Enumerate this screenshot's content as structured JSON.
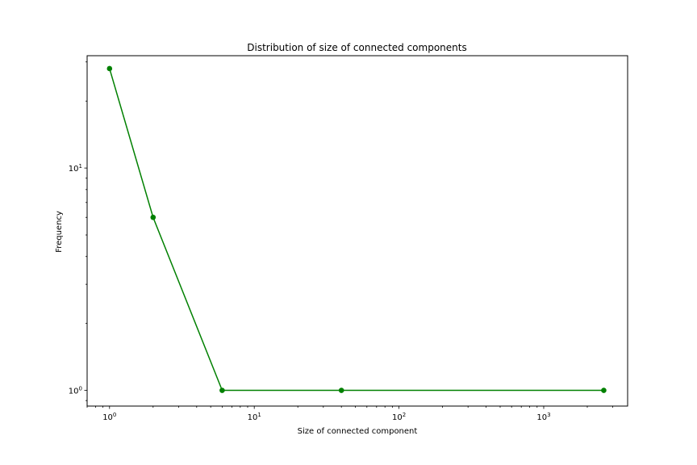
{
  "chart_data": {
    "type": "line",
    "title": "Distribution of size of connected components",
    "xlabel": "Size of connected component",
    "ylabel": "Frequency",
    "xscale": "log",
    "yscale": "log",
    "xlim": [
      0.7,
      3800
    ],
    "ylim": [
      0.85,
      32
    ],
    "x_ticks": [
      {
        "value": 1,
        "base": "10",
        "exp": "0"
      },
      {
        "value": 10,
        "base": "10",
        "exp": "1"
      },
      {
        "value": 100,
        "base": "10",
        "exp": "2"
      },
      {
        "value": 1000,
        "base": "10",
        "exp": "3"
      }
    ],
    "y_ticks": [
      {
        "value": 1,
        "base": "10",
        "exp": "0"
      },
      {
        "value": 10,
        "base": "10",
        "exp": "1"
      }
    ],
    "series": [
      {
        "color": "#008000",
        "marker": "circle",
        "points": [
          {
            "x": 1,
            "y": 28
          },
          {
            "x": 2,
            "y": 6
          },
          {
            "x": 6,
            "y": 1
          },
          {
            "x": 40,
            "y": 1
          },
          {
            "x": 2600,
            "y": 1
          }
        ]
      }
    ],
    "grid": false,
    "legend": "none"
  }
}
